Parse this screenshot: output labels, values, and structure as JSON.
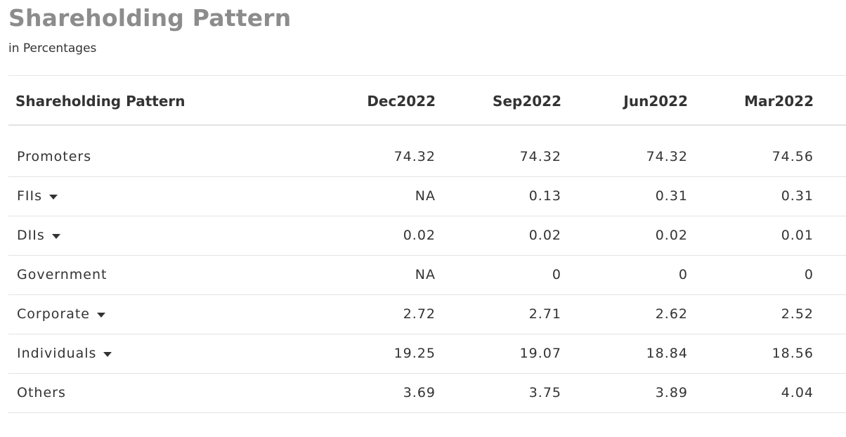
{
  "header": {
    "title": "Shareholding Pattern",
    "subtitle": "in Percentages"
  },
  "table": {
    "columns": [
      "Shareholding Pattern",
      "Dec2022",
      "Sep2022",
      "Jun2022",
      "Mar2022"
    ],
    "rows": [
      {
        "label": "Promoters",
        "expandable": false,
        "values": [
          "74.32",
          "74.32",
          "74.32",
          "74.56"
        ]
      },
      {
        "label": "FIIs",
        "expandable": true,
        "values": [
          "NA",
          "0.13",
          "0.31",
          "0.31"
        ]
      },
      {
        "label": "DIIs",
        "expandable": true,
        "values": [
          "0.02",
          "0.02",
          "0.02",
          "0.01"
        ]
      },
      {
        "label": "Government",
        "expandable": false,
        "values": [
          "NA",
          "0",
          "0",
          "0"
        ]
      },
      {
        "label": "Corporate",
        "expandable": true,
        "values": [
          "2.72",
          "2.71",
          "2.62",
          "2.52"
        ]
      },
      {
        "label": "Individuals",
        "expandable": true,
        "values": [
          "19.25",
          "19.07",
          "18.84",
          "18.56"
        ]
      },
      {
        "label": "Others",
        "expandable": false,
        "values": [
          "3.69",
          "3.75",
          "3.89",
          "4.04"
        ]
      }
    ]
  },
  "icons": {
    "expand": "caret-down-icon"
  }
}
